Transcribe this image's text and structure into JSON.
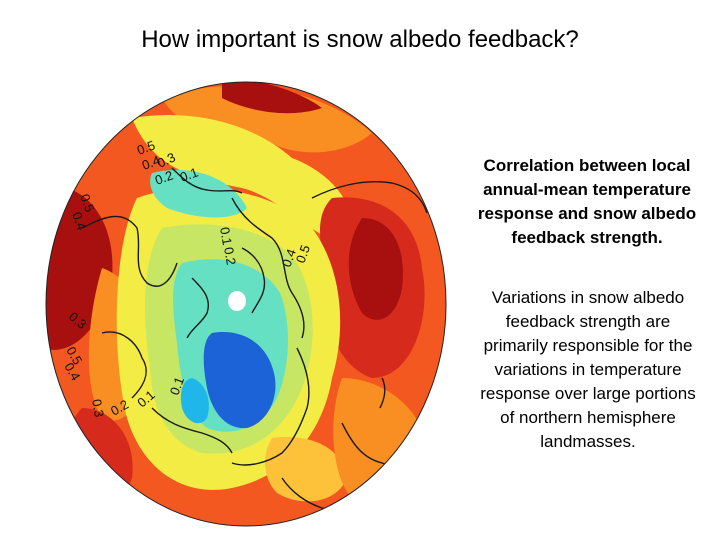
{
  "slide": {
    "title": "How important is snow albedo feedback?",
    "caption_bold": "Correlation between local annual-mean temperature response and snow albedo feedback strength.",
    "caption_body": "Variations in snow albedo feedback strength are primarily responsible for the variations in temperature response over large portions of northern hemisphere landmasses."
  },
  "map": {
    "projection": "north polar stereographic",
    "colors": {
      "strong_positive": "#a80f0f",
      "positive_high": "#d62a1d",
      "positive": "#f2581f",
      "moderate": "#f98f22",
      "weak": "#fdc23a",
      "near_zero": "#f3ec45",
      "low": "#c7e663",
      "cool": "#66e0c2",
      "cold": "#1fb7ea",
      "very_cold": "#1d63d8",
      "pole": "#ffffff",
      "coastline": "#1a1a1a"
    },
    "contour_labels": [
      {
        "text": "0.5"
      },
      {
        "text": "0.4"
      },
      {
        "text": "0.3"
      },
      {
        "text": "0.2"
      },
      {
        "text": "0.1"
      },
      {
        "text": "0.5"
      },
      {
        "text": "0.4"
      },
      {
        "text": "0.5"
      },
      {
        "text": "0.4"
      },
      {
        "text": "0.5"
      },
      {
        "text": "0.4"
      },
      {
        "text": "0.3"
      },
      {
        "text": "0.2"
      },
      {
        "text": "0.1"
      },
      {
        "text": "0.1"
      },
      {
        "text": "0.3"
      },
      {
        "text": "0.1"
      },
      {
        "text": "0.2"
      }
    ]
  }
}
